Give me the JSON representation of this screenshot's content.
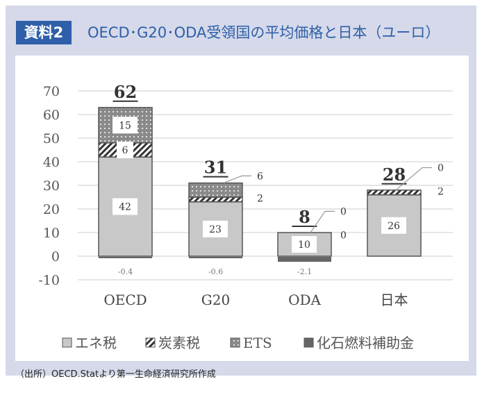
{
  "header": {
    "tag": "資料2",
    "title": "OECD･G20･ODA受領国の平均価格と日本（ユーロ）"
  },
  "source": "（出所）OECD.Statより第一生命経済研究所作成",
  "colors": {
    "energy": "#c8c8c8",
    "carbon": "#333333",
    "ets": "#8a8a8a",
    "subsidy": "#666666",
    "accent": "#2e5fa8"
  },
  "chart_data": {
    "type": "bar",
    "stacked": true,
    "categories": [
      "OECD",
      "G20",
      "ODA",
      "日本"
    ],
    "series": [
      {
        "name": "エネ税",
        "values": [
          42,
          23,
          10,
          26
        ]
      },
      {
        "name": "炭素税",
        "values": [
          6,
          2,
          0,
          2
        ]
      },
      {
        "name": "ETS",
        "values": [
          15,
          6,
          0,
          0
        ]
      },
      {
        "name": "化石燃料補助金",
        "values": [
          -0.4,
          -0.6,
          -2.1,
          null
        ]
      }
    ],
    "totals": [
      "62",
      "31",
      "8",
      "28"
    ],
    "yticks": [
      "70",
      "60",
      "50",
      "40",
      "30",
      "20",
      "10",
      "0",
      "-10"
    ],
    "ylim": [
      -10,
      70
    ],
    "grid": true,
    "legend": "bottom"
  }
}
